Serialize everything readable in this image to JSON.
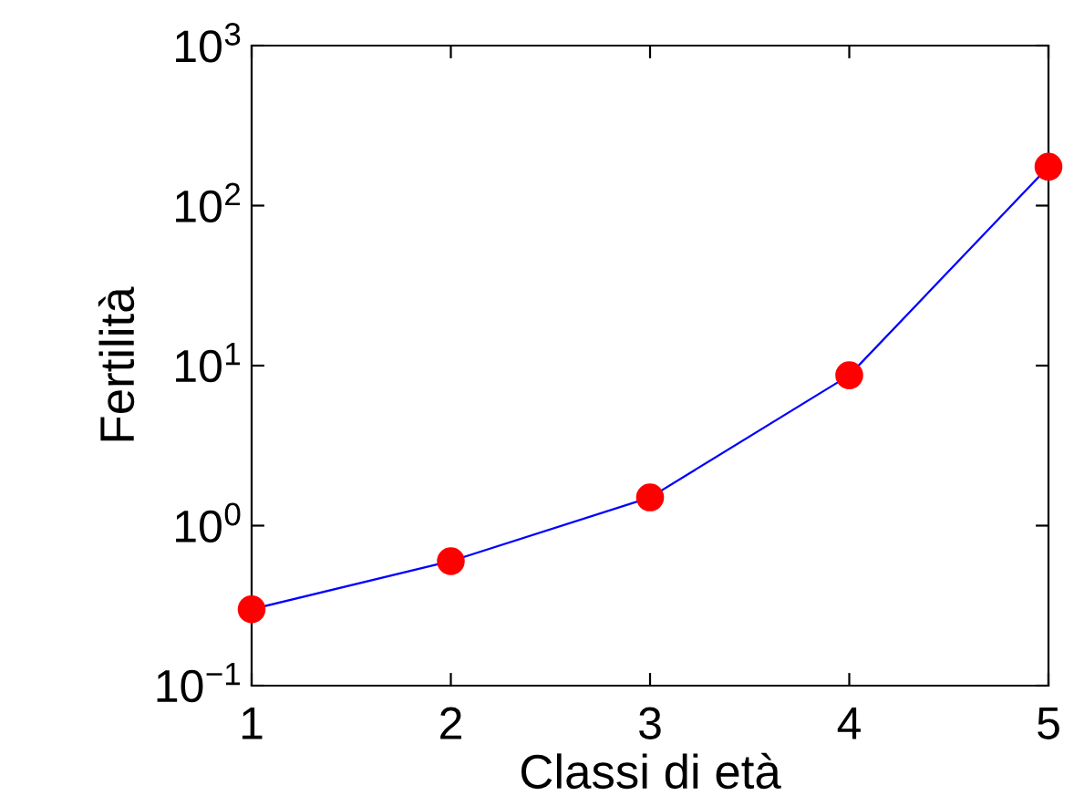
{
  "chart_data": {
    "type": "line",
    "xlabel": "Classi di età",
    "ylabel": "Fertilità",
    "x": [
      1,
      2,
      3,
      4,
      5
    ],
    "series": [
      {
        "color": "#0000ff",
        "colors": [
          "#ff0000",
          "#ff0000",
          "#ff0000",
          "#ff0000",
          "#ff0000"
        ],
        "values": [
          0.3,
          0.6,
          1.5,
          8.7,
          175
        ]
      }
    ],
    "marker": "circle",
    "line_style": "solid",
    "log": "y",
    "grid": false,
    "legend": false,
    "xlim": [
      1,
      5
    ],
    "xticks": [
      1,
      2,
      3,
      4,
      5
    ],
    "ylim": [
      0.1,
      1000
    ],
    "yticks": [
      {
        "value": 0.1,
        "label": "10$^{−1}$"
      },
      {
        "value": 1,
        "label": "10$^{0}$"
      },
      {
        "value": 10,
        "label": "10$^{1}$"
      },
      {
        "value": 100,
        "label": "10$^{2}$"
      },
      {
        "value": 1000,
        "label": "10$^{3}$"
      }
    ]
  }
}
